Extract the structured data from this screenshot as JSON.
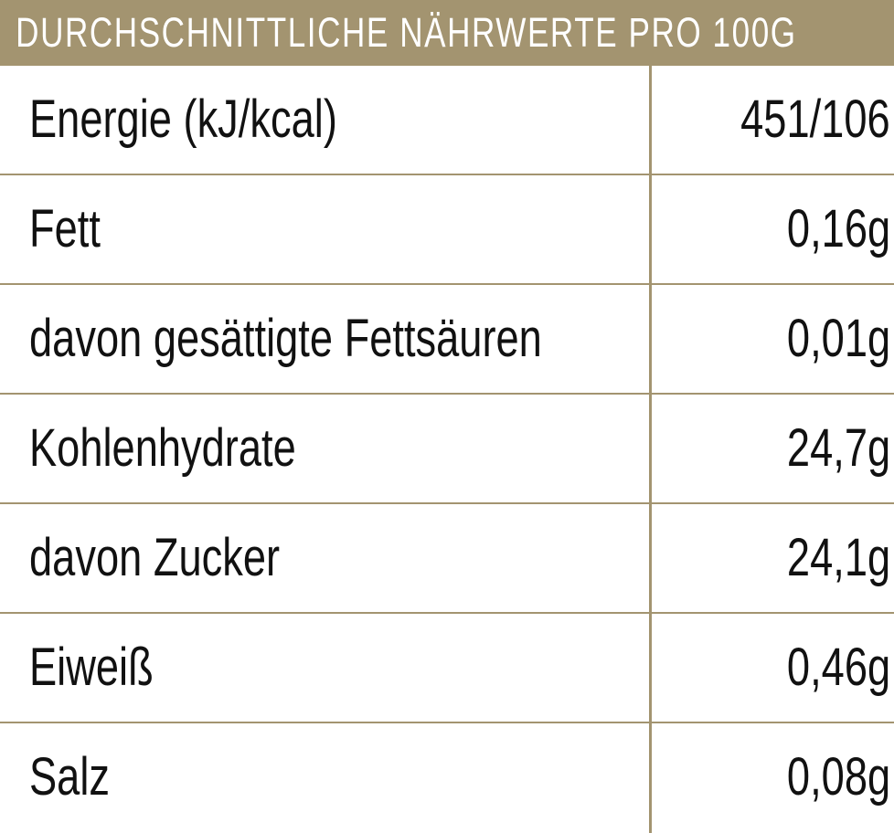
{
  "header": {
    "title": "DURCHSCHNITTLICHE NÄHRWERTE PRO 100G"
  },
  "rows": [
    {
      "label": "Energie (kJ/kcal)",
      "value": "451/106"
    },
    {
      "label": "Fett",
      "value": "0,16g"
    },
    {
      "label": "davon gesättigte Fettsäuren",
      "value": "0,01g"
    },
    {
      "label": "Kohlenhydrate",
      "value": "24,7g"
    },
    {
      "label": "davon Zucker",
      "value": "24,1g"
    },
    {
      "label": "Eiweiß",
      "value": "0,46g"
    },
    {
      "label": "Salz",
      "value": "0,08g"
    }
  ],
  "colors": {
    "accent": "#a39470",
    "text": "#111111",
    "header_text": "#ffffff"
  }
}
